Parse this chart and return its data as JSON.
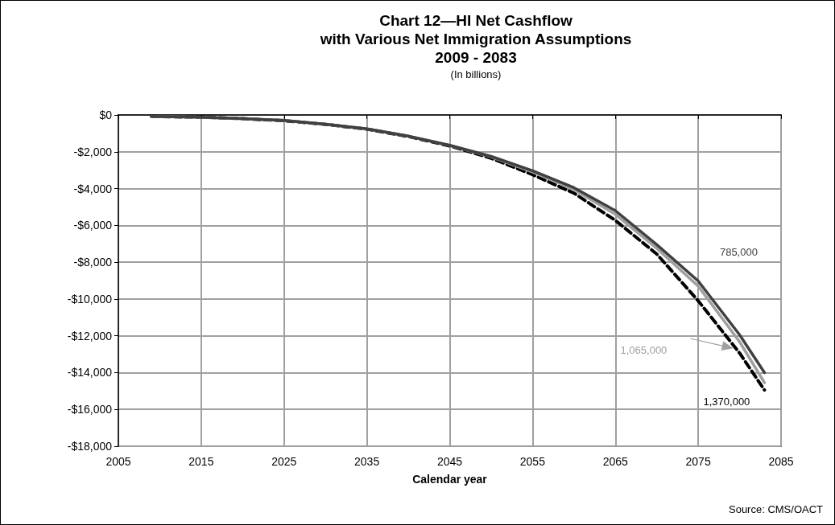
{
  "chart_data": {
    "type": "line",
    "title": "Chart 12—HI Net Cashflow\nwith Various Net Immigration Assumptions\n2009 - 2083",
    "subtitle": "(In billions)",
    "xlabel": "Calendar year",
    "annotations": [
      "Source: CMS/OACT"
    ],
    "x": [
      2009,
      2015,
      2020,
      2025,
      2030,
      2035,
      2040,
      2045,
      2050,
      2055,
      2060,
      2065,
      2070,
      2075,
      2080,
      2083
    ],
    "series": [
      {
        "name": "785,000",
        "color": "#404040",
        "line_style": "solid",
        "values": [
          -80,
          -120,
          -200,
          -300,
          -500,
          -750,
          -1150,
          -1650,
          -2250,
          -3030,
          -3950,
          -5200,
          -7050,
          -9020,
          -11950,
          -14000
        ]
      },
      {
        "name": "1,065,000",
        "color": "#a0a0a0",
        "line_style": "solid",
        "values": [
          -80,
          -120,
          -200,
          -300,
          -500,
          -750,
          -1150,
          -1650,
          -2280,
          -3100,
          -4050,
          -5400,
          -7250,
          -9300,
          -12330,
          -14550
        ]
      },
      {
        "name": "1,370,000",
        "color": "#000000",
        "line_style": "dashed",
        "values": [
          -80,
          -120,
          -200,
          -310,
          -510,
          -770,
          -1170,
          -1680,
          -2350,
          -3240,
          -4250,
          -5730,
          -7560,
          -10100,
          -12940,
          -14950
        ]
      }
    ],
    "xlim": [
      2005,
      2085
    ],
    "xticks": [
      2005,
      2015,
      2025,
      2035,
      2045,
      2055,
      2065,
      2075,
      2085
    ],
    "ylim": [
      -18000,
      0
    ],
    "yticks": [
      {
        "value": 0,
        "label": "$0"
      },
      {
        "value": -2000,
        "label": "-$2,000"
      },
      {
        "value": -4000,
        "label": "-$4,000"
      },
      {
        "value": -6000,
        "label": "-$6,000"
      },
      {
        "value": -8000,
        "label": "-$8,000"
      },
      {
        "value": -10000,
        "label": "-$10,000"
      },
      {
        "value": -12000,
        "label": "-$12,000"
      },
      {
        "value": -14000,
        "label": "-$14,000"
      },
      {
        "value": -16000,
        "label": "-$16,000"
      },
      {
        "value": -18000,
        "label": "-$18,000"
      }
    ],
    "grid": true,
    "legend": false,
    "marker": "none"
  }
}
